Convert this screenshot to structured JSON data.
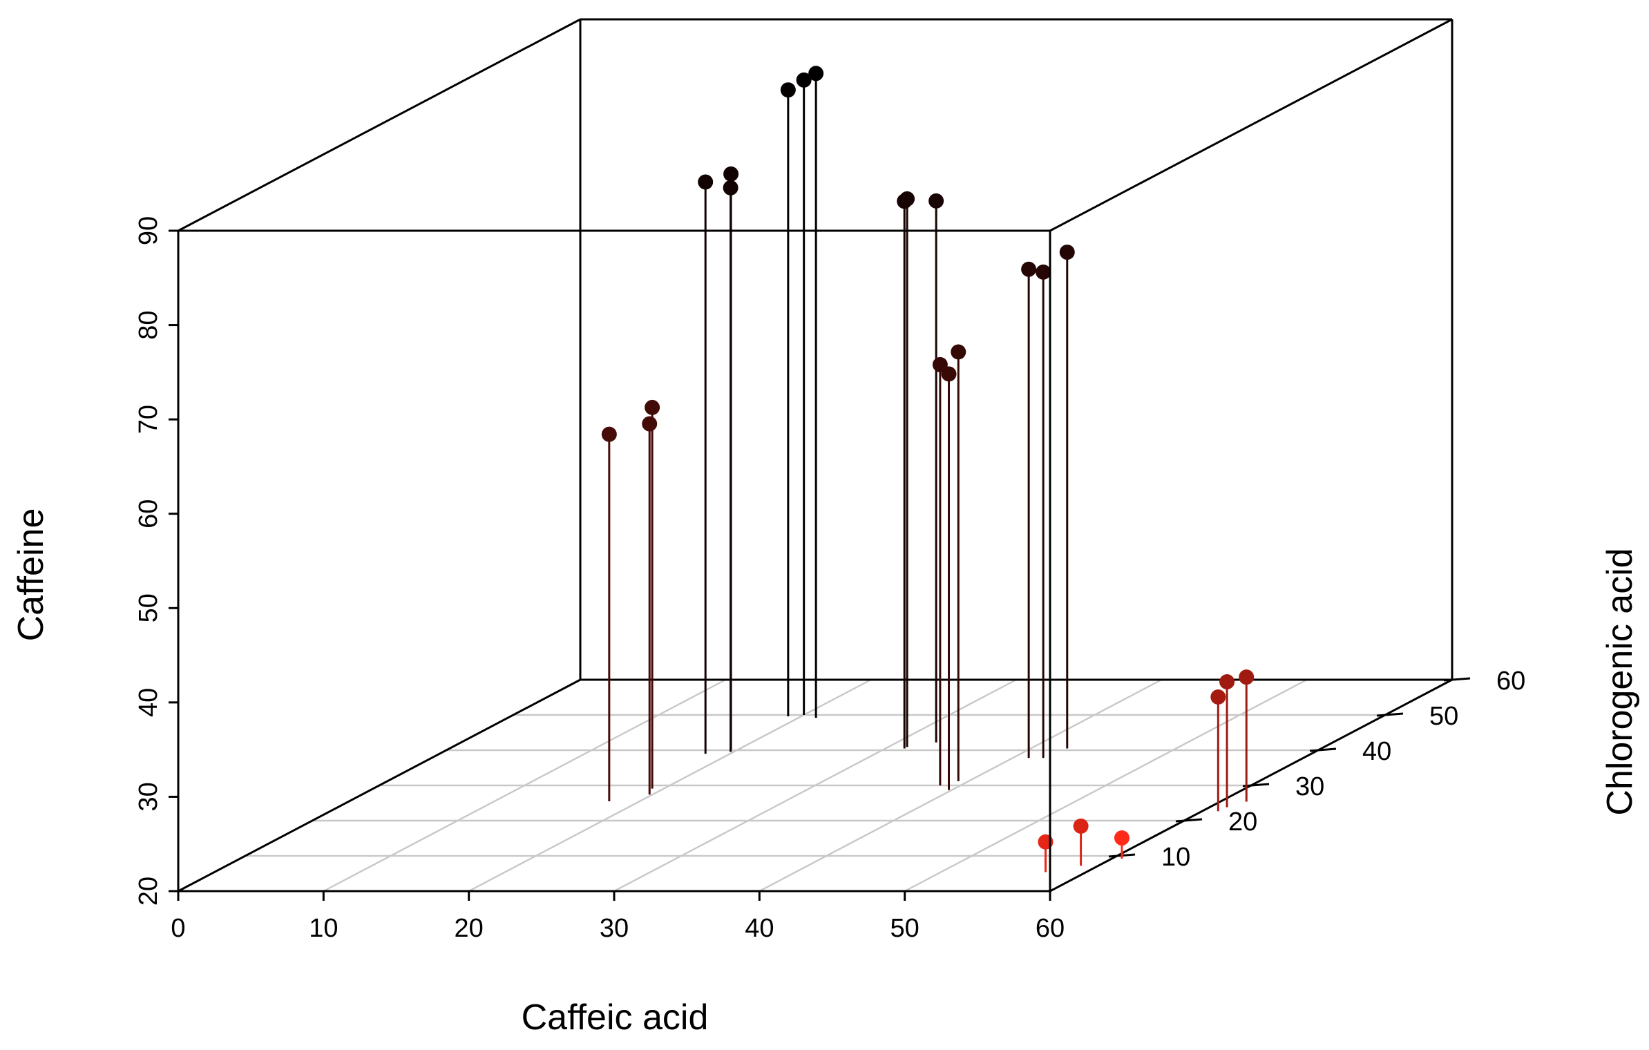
{
  "chart_data": {
    "type": "scatter3d",
    "title": "",
    "xlabel": "Caffeic acid",
    "ylabel": "Chlorogenic acid",
    "zlabel": "Caffeine",
    "xlim": [
      0,
      60
    ],
    "ylim": [
      0,
      60
    ],
    "zlim": [
      20,
      90
    ],
    "x_ticks": [
      "0",
      "10",
      "20",
      "30",
      "40",
      "50",
      "60"
    ],
    "y_ticks": [
      "10",
      "20",
      "30",
      "40",
      "50",
      "60"
    ],
    "z_ticks": [
      "20",
      "30",
      "40",
      "50",
      "60",
      "70",
      "80",
      "90"
    ],
    "grid": true,
    "drop_lines": true,
    "color_scale": {
      "low": "#ff2a1a",
      "high": "#000000",
      "by": "Caffeine"
    },
    "points": [
      {
        "x": 19.1,
        "y": 49.6,
        "z": 86.4
      },
      {
        "x": 20.0,
        "y": 50.0,
        "z": 87.3
      },
      {
        "x": 21.2,
        "y": 49.2,
        "z": 88.3
      },
      {
        "x": 18.3,
        "y": 39.0,
        "z": 80.6
      },
      {
        "x": 19.5,
        "y": 40.2,
        "z": 81.0
      },
      {
        "x": 19.8,
        "y": 39.5,
        "z": 79.8
      },
      {
        "x": 31.3,
        "y": 40.5,
        "z": 78.0
      },
      {
        "x": 31.3,
        "y": 40.9,
        "z": 78.1
      },
      {
        "x": 32.7,
        "y": 42.2,
        "z": 77.4
      },
      {
        "x": 41.1,
        "y": 37.8,
        "z": 71.8
      },
      {
        "x": 42.1,
        "y": 37.8,
        "z": 71.5
      },
      {
        "x": 42.5,
        "y": 40.5,
        "z": 72.6
      },
      {
        "x": 17.9,
        "y": 25.5,
        "z": 58.9
      },
      {
        "x": 19.2,
        "y": 29.1,
        "z": 60.4
      },
      {
        "x": 19.8,
        "y": 27.4,
        "z": 59.3
      },
      {
        "x": 38.6,
        "y": 30.0,
        "z": 64.6
      },
      {
        "x": 39.3,
        "y": 31.2,
        "z": 65.5
      },
      {
        "x": 39.8,
        "y": 28.7,
        "z": 64.1
      },
      {
        "x": 57.2,
        "y": 5.4,
        "z": 23.2
      },
      {
        "x": 58.8,
        "y": 7.2,
        "z": 24.2
      },
      {
        "x": 60.7,
        "y": 9.2,
        "z": 22.2
      },
      {
        "x": 61.1,
        "y": 22.7,
        "z": 32.1
      },
      {
        "x": 61.2,
        "y": 23.8,
        "z": 33.3
      },
      {
        "x": 61.8,
        "y": 25.4,
        "z": 33.2
      }
    ]
  }
}
